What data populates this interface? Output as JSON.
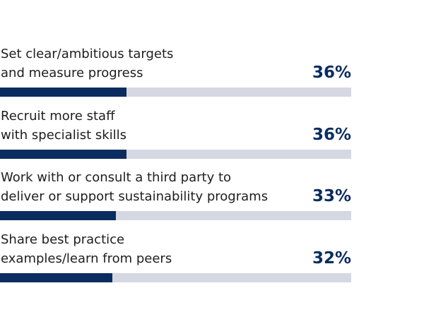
{
  "chart_data": {
    "type": "bar",
    "orientation": "horizontal",
    "categories": [
      "Set clear/ambitious targets\nand measure progress",
      "Recruit more staff\nwith specialist skills",
      "Work with or consult a third party to\ndeliver or support sustainability programs",
      "Share best practice\nexamples/learn from peers"
    ],
    "values": [
      36,
      36,
      33,
      32
    ],
    "value_labels": [
      "36%",
      "36%",
      "33%",
      "32%"
    ],
    "color": "#0b2c5f",
    "track_color": "#d5d8e2",
    "xlim": [
      0,
      100
    ]
  }
}
